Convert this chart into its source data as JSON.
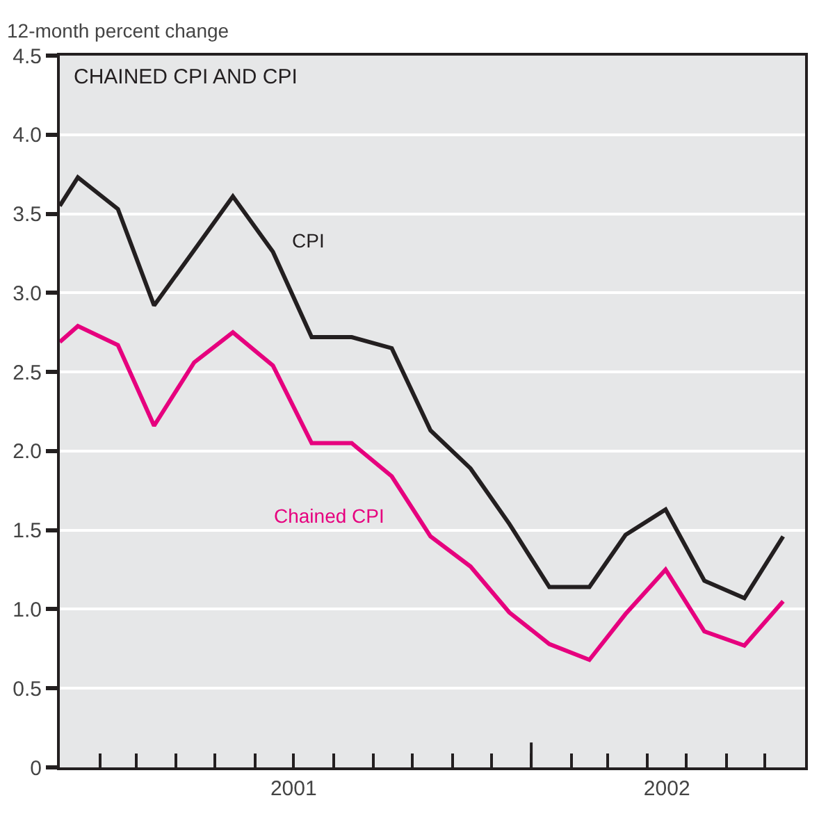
{
  "chart_data": {
    "type": "line",
    "title": "CHAINED CPI AND CPI",
    "ylabel": "12-month percent change",
    "x": [
      "2001-01-01",
      "2001-01-15",
      "2001-02-15",
      "2001-03-15",
      "2001-04-15",
      "2001-05-15",
      "2001-06-15",
      "2001-07-15",
      "2001-08-15",
      "2001-09-15",
      "2001-10-15",
      "2001-11-15",
      "2001-12-15",
      "2002-01-15",
      "2002-02-15",
      "2002-03-15",
      "2002-04-15",
      "2002-05-15",
      "2002-06-15",
      "2002-07-15"
    ],
    "series": [
      {
        "name": "CPI",
        "color": "#231f20",
        "values": [
          3.55,
          3.73,
          3.53,
          2.92,
          3.27,
          3.61,
          3.26,
          2.72,
          2.72,
          2.65,
          2.13,
          1.89,
          1.54,
          1.14,
          1.14,
          1.47,
          1.63,
          1.18,
          1.07,
          1.46
        ]
      },
      {
        "name": "Chained CPI",
        "color": "#e6007e",
        "values": [
          2.69,
          2.79,
          2.67,
          2.16,
          2.56,
          2.75,
          2.54,
          2.05,
          2.05,
          1.84,
          1.46,
          1.27,
          0.98,
          0.78,
          0.68,
          0.97,
          1.25,
          0.86,
          0.77,
          1.05
        ]
      }
    ],
    "xlim": [
      "2001-01-01",
      "2002-08-01"
    ],
    "xticks": [
      {
        "value": "2001-02-01",
        "label": null
      },
      {
        "value": "2001-03-01",
        "label": null
      },
      {
        "value": "2001-04-01",
        "label": null
      },
      {
        "value": "2001-05-01",
        "label": null
      },
      {
        "value": "2001-06-01",
        "label": null
      },
      {
        "value": "2001-07-01",
        "label": null
      },
      {
        "value": "2001-08-01",
        "label": null
      },
      {
        "value": "2001-09-01",
        "label": null
      },
      {
        "value": "2001-10-01",
        "label": null
      },
      {
        "value": "2001-11-01",
        "label": null
      },
      {
        "value": "2001-12-01",
        "label": null
      },
      {
        "value": "2002-01-01",
        "label": null
      },
      {
        "value": "2002-02-01",
        "label": null
      },
      {
        "value": "2002-03-01",
        "label": null
      },
      {
        "value": "2002-04-01",
        "label": null
      },
      {
        "value": "2002-05-01",
        "label": null
      },
      {
        "value": "2002-06-01",
        "label": null
      },
      {
        "value": "2002-07-01",
        "label": null
      },
      {
        "value": "2001-07-01",
        "label": "2001"
      },
      {
        "value": "2002-04-16",
        "label": "2002"
      }
    ],
    "ylim": [
      0,
      4.5
    ],
    "yticks": [
      0,
      {
        "value": 0.5,
        "label": "0.5"
      },
      {
        "value": 1,
        "label": "1.0"
      },
      {
        "value": 1.5,
        "label": "1.5"
      },
      {
        "value": 2,
        "label": "2.0"
      },
      {
        "value": 2.5,
        "label": "2.5"
      },
      {
        "value": 3,
        "label": "3.0"
      },
      {
        "value": 3.5,
        "label": "3.5"
      },
      {
        "value": 4,
        "label": "4.0"
      },
      {
        "value": 4.5,
        "label": "4.5"
      }
    ],
    "grid": "y",
    "legend": false,
    "marker": "none",
    "line_style": "solid"
  }
}
